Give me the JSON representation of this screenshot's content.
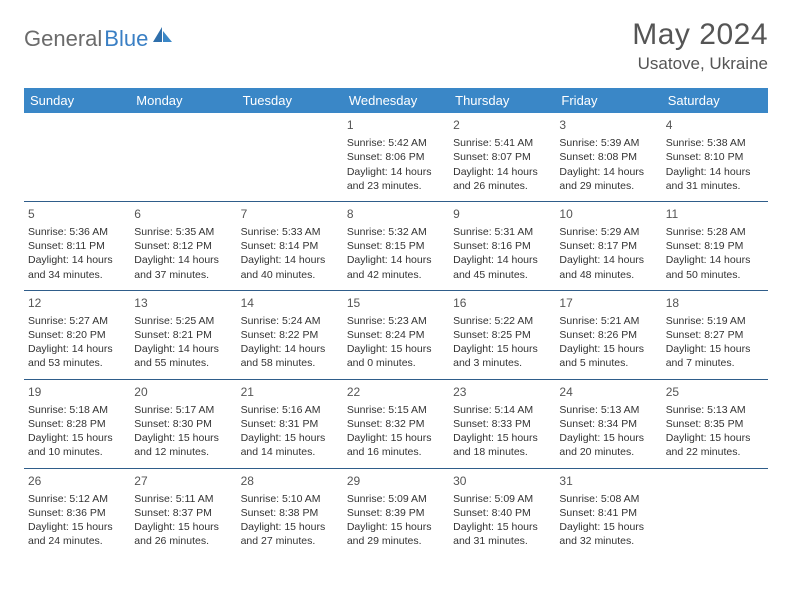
{
  "brand": {
    "part1": "General",
    "part2": "Blue"
  },
  "title": "May 2024",
  "location": "Usatove, Ukraine",
  "colors": {
    "header_bg": "#3a87c7",
    "header_text": "#ffffff",
    "row_border": "#2f5d8a",
    "title_color": "#555555",
    "body_text": "#333333",
    "logo_gray": "#6b6b6b",
    "logo_blue": "#3a7fc4"
  },
  "typography": {
    "title_fontsize": 30,
    "location_fontsize": 17,
    "dayheader_fontsize": 13,
    "cell_fontsize": 10.5,
    "daynum_fontsize": 12
  },
  "day_headers": [
    "Sunday",
    "Monday",
    "Tuesday",
    "Wednesday",
    "Thursday",
    "Friday",
    "Saturday"
  ],
  "weeks": [
    [
      null,
      null,
      null,
      {
        "n": "1",
        "sr": "5:42 AM",
        "ss": "8:06 PM",
        "dh": "14",
        "dm": "23"
      },
      {
        "n": "2",
        "sr": "5:41 AM",
        "ss": "8:07 PM",
        "dh": "14",
        "dm": "26"
      },
      {
        "n": "3",
        "sr": "5:39 AM",
        "ss": "8:08 PM",
        "dh": "14",
        "dm": "29"
      },
      {
        "n": "4",
        "sr": "5:38 AM",
        "ss": "8:10 PM",
        "dh": "14",
        "dm": "31"
      }
    ],
    [
      {
        "n": "5",
        "sr": "5:36 AM",
        "ss": "8:11 PM",
        "dh": "14",
        "dm": "34"
      },
      {
        "n": "6",
        "sr": "5:35 AM",
        "ss": "8:12 PM",
        "dh": "14",
        "dm": "37"
      },
      {
        "n": "7",
        "sr": "5:33 AM",
        "ss": "8:14 PM",
        "dh": "14",
        "dm": "40"
      },
      {
        "n": "8",
        "sr": "5:32 AM",
        "ss": "8:15 PM",
        "dh": "14",
        "dm": "42"
      },
      {
        "n": "9",
        "sr": "5:31 AM",
        "ss": "8:16 PM",
        "dh": "14",
        "dm": "45"
      },
      {
        "n": "10",
        "sr": "5:29 AM",
        "ss": "8:17 PM",
        "dh": "14",
        "dm": "48"
      },
      {
        "n": "11",
        "sr": "5:28 AM",
        "ss": "8:19 PM",
        "dh": "14",
        "dm": "50"
      }
    ],
    [
      {
        "n": "12",
        "sr": "5:27 AM",
        "ss": "8:20 PM",
        "dh": "14",
        "dm": "53"
      },
      {
        "n": "13",
        "sr": "5:25 AM",
        "ss": "8:21 PM",
        "dh": "14",
        "dm": "55"
      },
      {
        "n": "14",
        "sr": "5:24 AM",
        "ss": "8:22 PM",
        "dh": "14",
        "dm": "58"
      },
      {
        "n": "15",
        "sr": "5:23 AM",
        "ss": "8:24 PM",
        "dh": "15",
        "dm": "0"
      },
      {
        "n": "16",
        "sr": "5:22 AM",
        "ss": "8:25 PM",
        "dh": "15",
        "dm": "3"
      },
      {
        "n": "17",
        "sr": "5:21 AM",
        "ss": "8:26 PM",
        "dh": "15",
        "dm": "5"
      },
      {
        "n": "18",
        "sr": "5:19 AM",
        "ss": "8:27 PM",
        "dh": "15",
        "dm": "7"
      }
    ],
    [
      {
        "n": "19",
        "sr": "5:18 AM",
        "ss": "8:28 PM",
        "dh": "15",
        "dm": "10"
      },
      {
        "n": "20",
        "sr": "5:17 AM",
        "ss": "8:30 PM",
        "dh": "15",
        "dm": "12"
      },
      {
        "n": "21",
        "sr": "5:16 AM",
        "ss": "8:31 PM",
        "dh": "15",
        "dm": "14"
      },
      {
        "n": "22",
        "sr": "5:15 AM",
        "ss": "8:32 PM",
        "dh": "15",
        "dm": "16"
      },
      {
        "n": "23",
        "sr": "5:14 AM",
        "ss": "8:33 PM",
        "dh": "15",
        "dm": "18"
      },
      {
        "n": "24",
        "sr": "5:13 AM",
        "ss": "8:34 PM",
        "dh": "15",
        "dm": "20"
      },
      {
        "n": "25",
        "sr": "5:13 AM",
        "ss": "8:35 PM",
        "dh": "15",
        "dm": "22"
      }
    ],
    [
      {
        "n": "26",
        "sr": "5:12 AM",
        "ss": "8:36 PM",
        "dh": "15",
        "dm": "24"
      },
      {
        "n": "27",
        "sr": "5:11 AM",
        "ss": "8:37 PM",
        "dh": "15",
        "dm": "26"
      },
      {
        "n": "28",
        "sr": "5:10 AM",
        "ss": "8:38 PM",
        "dh": "15",
        "dm": "27"
      },
      {
        "n": "29",
        "sr": "5:09 AM",
        "ss": "8:39 PM",
        "dh": "15",
        "dm": "29"
      },
      {
        "n": "30",
        "sr": "5:09 AM",
        "ss": "8:40 PM",
        "dh": "15",
        "dm": "31"
      },
      {
        "n": "31",
        "sr": "5:08 AM",
        "ss": "8:41 PM",
        "dh": "15",
        "dm": "32"
      },
      null
    ]
  ],
  "labels": {
    "sunrise": "Sunrise:",
    "sunset": "Sunset:",
    "daylight_prefix": "Daylight:",
    "hours_word": "hours",
    "and_word": "and",
    "minutes_word": "minutes."
  }
}
